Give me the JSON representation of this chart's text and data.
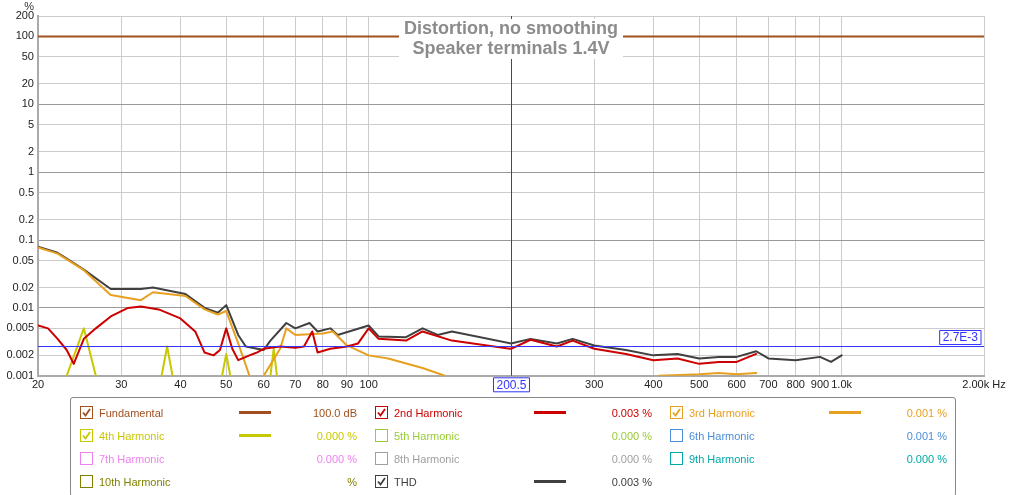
{
  "chart_data": {
    "type": "line",
    "title": "Distortion, no smoothing",
    "subtitle": "Speaker terminals 1.4V",
    "ylabel": "%",
    "log": "xy",
    "grid": true,
    "legend": "bottom",
    "marker": "none",
    "line_style": "solid",
    "xlim": [
      20,
      2000
    ],
    "xticks": [
      20,
      30,
      40,
      50,
      60,
      70,
      80,
      90,
      100,
      300,
      400,
      500,
      600,
      700,
      800,
      900,
      {
        "value": 1000,
        "label": "1.0k"
      },
      {
        "value": 2000,
        "label": "2.00k Hz"
      }
    ],
    "ylim": [
      0.001,
      200
    ],
    "yticks": [
      0.001,
      0.002,
      0.005,
      0.01,
      0.02,
      0.05,
      0.1,
      0.2,
      0.5,
      1,
      2,
      5,
      10,
      20,
      50,
      100,
      200
    ],
    "ref_lines": [
      {
        "axis": "x",
        "value": 200.5,
        "label": "200.5",
        "color": "#3333ff"
      },
      {
        "axis": "y",
        "value": 0.0027,
        "label": "2.7E-3",
        "color": "#3333ff"
      }
    ],
    "series": [
      {
        "name": "Fundamental",
        "color": "#a0501e",
        "x": [
          20,
          2000
        ],
        "values": [
          100,
          100
        ]
      },
      {
        "name": "2nd Harmonic",
        "color": "#cc0000",
        "x": [
          20,
          21,
          22,
          23,
          23.8,
          25,
          26.5,
          28.5,
          31,
          33,
          36,
          40,
          43,
          45,
          47,
          48.5,
          50,
          51.5,
          53,
          56,
          58,
          60,
          65,
          70,
          73,
          76,
          78,
          83,
          90,
          95,
          100,
          105,
          120,
          130,
          150,
          200,
          220,
          250,
          270,
          300,
          350,
          400,
          450,
          500,
          550,
          600,
          660
        ],
        "values": [
          0.0055,
          0.005,
          0.0035,
          0.0024,
          0.0015,
          0.0035,
          0.005,
          0.0075,
          0.01,
          0.0105,
          0.0095,
          0.007,
          0.0045,
          0.0022,
          0.002,
          0.0024,
          0.005,
          0.0025,
          0.0017,
          0.002,
          0.0022,
          0.0025,
          0.0027,
          0.0026,
          0.0027,
          0.0045,
          0.0022,
          0.0025,
          0.0027,
          0.003,
          0.005,
          0.0035,
          0.0033,
          0.0045,
          0.0033,
          0.0025,
          0.0034,
          0.0027,
          0.0033,
          0.0025,
          0.0021,
          0.0017,
          0.0018,
          0.0015,
          0.0016,
          0.0016,
          0.0021
        ]
      },
      {
        "name": "3rd Harmonic",
        "color": "#e8a020",
        "x": [
          20,
          22,
          25,
          28.5,
          33,
          35,
          41,
          45,
          48,
          50,
          53,
          56,
          58,
          60,
          65,
          67,
          70,
          80,
          84,
          90,
          100,
          110,
          130,
          145,
          400,
          410,
          500,
          550,
          600,
          660
        ],
        "values": [
          0.078,
          0.063,
          0.036,
          0.0155,
          0.013,
          0.017,
          0.015,
          0.0095,
          0.008,
          0.009,
          0.003,
          0.001,
          null,
          0.001,
          0.0025,
          0.005,
          0.004,
          0.0042,
          0.0045,
          0.0028,
          0.002,
          0.0018,
          0.0013,
          0.001,
          null,
          0.001,
          0.00105,
          0.0011,
          0.00105,
          0.0011
        ]
      },
      {
        "name": "4th Harmonic",
        "color": "#c8c800",
        "x": [
          23,
          25,
          26.5,
          30,
          36.5,
          37.5,
          38.5,
          45,
          49,
          50,
          51,
          55,
          62,
          63,
          64
        ],
        "values": [
          0.001,
          0.005,
          0.001,
          null,
          0.001,
          0.0027,
          0.001,
          null,
          0.001,
          0.0021,
          0.001,
          null,
          0.001,
          0.0025,
          0.001
        ]
      },
      {
        "name": "5th Harmonic",
        "color": "#99cc33"
      },
      {
        "name": "6th Harmonic",
        "color": "#4a8fd9"
      },
      {
        "name": "7th Harmonic",
        "color": "#ee82ee"
      },
      {
        "name": "8th Harmonic",
        "color": "#a0a0a0"
      },
      {
        "name": "9th Harmonic",
        "color": "#00a8a8"
      },
      {
        "name": "10th Harmonic",
        "color": "#808000"
      },
      {
        "name": "THD",
        "color": "#404040",
        "x": [
          20,
          22,
          25,
          28.5,
          33,
          35,
          41,
          45,
          48,
          50,
          53,
          55,
          60,
          62,
          67,
          70,
          75,
          78,
          83,
          86,
          100,
          105,
          120,
          130,
          140,
          150,
          200,
          220,
          250,
          270,
          300,
          350,
          400,
          450,
          500,
          550,
          600,
          660,
          700,
          800,
          900,
          950,
          1000
        ],
        "values": [
          0.08,
          0.065,
          0.0367,
          0.019,
          0.019,
          0.02,
          0.016,
          0.01,
          0.0085,
          0.011,
          0.004,
          0.0027,
          0.0024,
          0.0033,
          0.006,
          0.005,
          0.006,
          0.0045,
          0.005,
          0.004,
          0.0055,
          0.0038,
          0.0037,
          0.005,
          0.004,
          0.0045,
          0.003,
          0.0035,
          0.003,
          0.0035,
          0.0028,
          0.0024,
          0.002,
          0.0021,
          0.0018,
          0.0019,
          0.0019,
          0.0023,
          0.0018,
          0.0017,
          0.0019,
          0.0016,
          0.002
        ]
      }
    ],
    "annotations": [
      "100.0 dB",
      "0.003 %",
      "0.001 %",
      "0.000 %",
      "0.000 %",
      "0.001 %",
      "0.000 %",
      "0.000 %",
      "0.000 %",
      "%",
      "0.003 %"
    ]
  }
}
